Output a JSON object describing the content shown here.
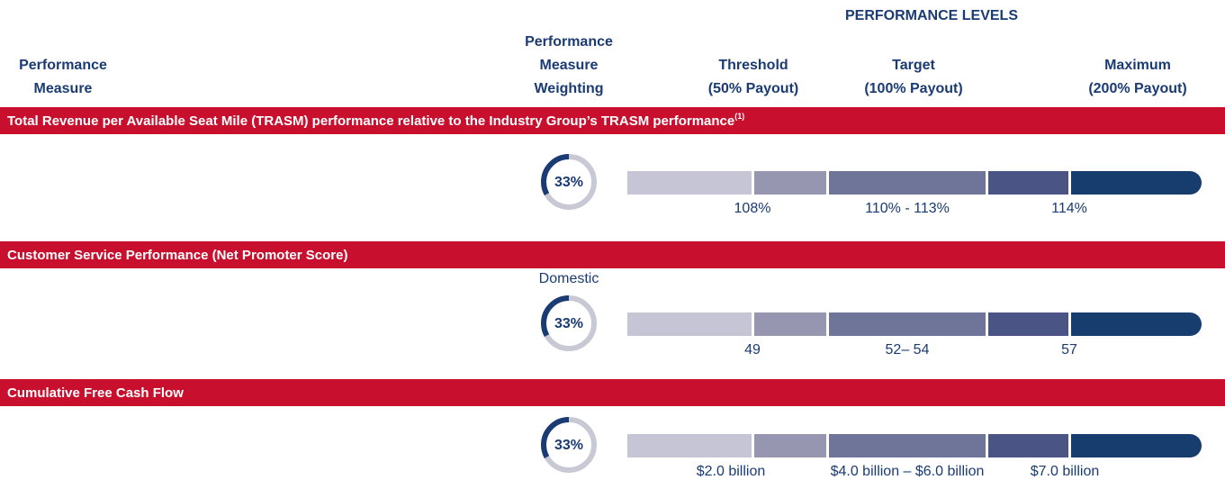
{
  "header": {
    "title": "PERFORMANCE LEVELS"
  },
  "columns": {
    "measure": [
      "Performance",
      "Measure"
    ],
    "weighting": [
      "Performance",
      "Measure",
      "Weighting"
    ],
    "threshold": [
      "Threshold",
      "(50% Payout)"
    ],
    "target": [
      "Target",
      "(100% Payout)"
    ],
    "maximum": [
      "Maximum",
      "(200% Payout)"
    ]
  },
  "rows": [
    {
      "title": "Total Revenue per Available Seat Mile (TRASM) performance relative to the Industry Group’s TRASM performance",
      "footnote": "(1)",
      "weighting": {
        "value": 33,
        "label": "33%"
      },
      "levels": [
        "108%",
        "110% - 113%",
        "114%"
      ]
    },
    {
      "title": "Customer Service Performance (Net Promoter Score)",
      "sublabel": "Domestic",
      "weighting": {
        "value": 33,
        "label": "33%"
      },
      "levels": [
        "49",
        "52– 54",
        "57"
      ]
    },
    {
      "title": "Cumulative Free Cash Flow",
      "weighting": {
        "value": 33,
        "label": "33%"
      },
      "levels": [
        "$2.0 billion",
        "$4.0 billion – $6.0 billion",
        "$7.0 billion"
      ]
    }
  ]
}
